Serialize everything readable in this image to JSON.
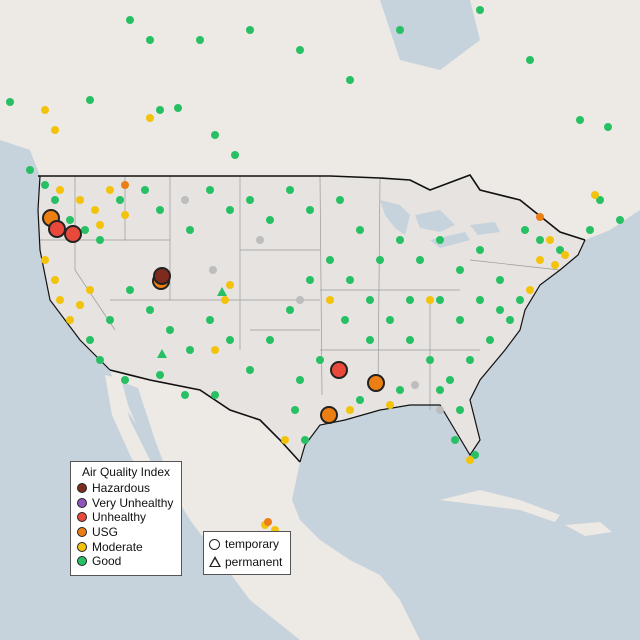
{
  "legend": {
    "title": "Air Quality Index",
    "categories": [
      {
        "label": "Hazardous",
        "color": "#7e2a1e"
      },
      {
        "label": "Very Unhealthy",
        "color": "#8f55b8"
      },
      {
        "label": "Unhealthy",
        "color": "#e8493a"
      },
      {
        "label": "USG",
        "color": "#ec7f14"
      },
      {
        "label": "Moderate",
        "color": "#f3c30b"
      },
      {
        "label": "Good",
        "color": "#27c064"
      }
    ]
  },
  "monitor_types": {
    "temporary": "temporary",
    "permanent": "permanent"
  },
  "colors": {
    "ocean": "#c6d3dc",
    "land": "#ede9e4",
    "us_land": "#e6e3e0",
    "border": "#111111",
    "no_data": "#bdbdbd"
  }
}
